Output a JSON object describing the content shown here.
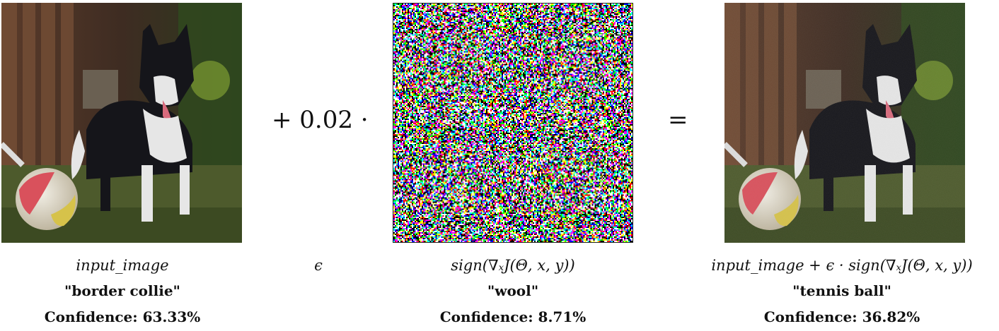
{
  "operators": {
    "plus_epsilon": "+ 0.02 ·",
    "equals": "="
  },
  "captions": {
    "input_expr": "input_image",
    "epsilon": "ϵ",
    "noise_expr": "sign(∇ₓJ(Θ, x, y))",
    "output_expr": "input_image + ϵ · sign(∇ₓJ(Θ, x, y))"
  },
  "predictions": {
    "input": {
      "label": "\"border collie\"",
      "confidence": "Confidence: 63.33%"
    },
    "noise": {
      "label": "\"wool\"",
      "confidence": "Confidence: 8.71%"
    },
    "output": {
      "label": "\"tennis ball\"",
      "confidence": "Confidence: 36.82%"
    }
  },
  "colors": {
    "fence": "#6b4a34",
    "grass": "#4d5a2c",
    "dog_black": "#15151a",
    "dog_white": "#e6e6e6",
    "ball_red": "#d9515c",
    "ball_yellow": "#d6c24a"
  }
}
